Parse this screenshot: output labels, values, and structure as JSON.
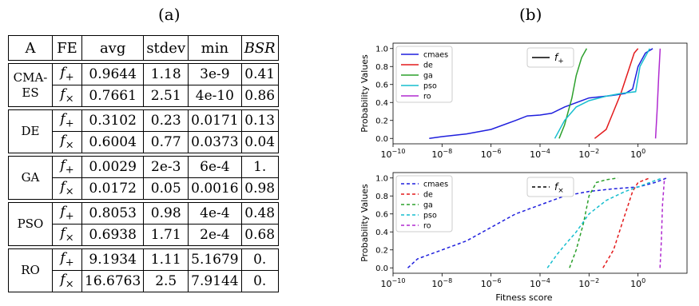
{
  "panel_a_label": "(a)",
  "panel_b_label": "(b)",
  "table": {
    "headers": [
      "A",
      "FE",
      "avg",
      "stdev",
      "min",
      "BSR"
    ],
    "groups": [
      {
        "algo_line1": "CMA-",
        "algo_line2": "ES",
        "rows": [
          {
            "fe": "f",
            "sub": "+",
            "avg": "0.9644",
            "stdev": "1.18",
            "min": "3e-9",
            "bsr": "0.41"
          },
          {
            "fe": "f",
            "sub": "×",
            "avg": "0.7661",
            "stdev": "2.51",
            "min": "4e-10",
            "bsr": "0.86"
          }
        ]
      },
      {
        "algo_line1": "DE",
        "algo_line2": "",
        "rows": [
          {
            "fe": "f",
            "sub": "+",
            "avg": "0.3102",
            "stdev": "0.23",
            "min": "0.0171",
            "bsr": "0.13"
          },
          {
            "fe": "f",
            "sub": "×",
            "avg": "0.6004",
            "stdev": "0.77",
            "min": "0.0373",
            "bsr": "0.04"
          }
        ]
      },
      {
        "algo_line1": "GA",
        "algo_line2": "",
        "rows": [
          {
            "fe": "f",
            "sub": "+",
            "avg": "0.0029",
            "stdev": "2e-3",
            "min": "6e-4",
            "bsr": "1."
          },
          {
            "fe": "f",
            "sub": "×",
            "avg": "0.0172",
            "stdev": "0.05",
            "min": "0.0016",
            "bsr": "0.98"
          }
        ]
      },
      {
        "algo_line1": "PSO",
        "algo_line2": "",
        "rows": [
          {
            "fe": "f",
            "sub": "+",
            "avg": "0.8053",
            "stdev": "0.98",
            "min": "4e-4",
            "bsr": "0.48"
          },
          {
            "fe": "f",
            "sub": "×",
            "avg": "0.6938",
            "stdev": "1.71",
            "min": "2e-4",
            "bsr": "0.68"
          }
        ]
      },
      {
        "algo_line1": "RO",
        "algo_line2": "",
        "rows": [
          {
            "fe": "f",
            "sub": "+",
            "avg": "9.1934",
            "stdev": "1.11",
            "min": "5.1679",
            "bsr": "0."
          },
          {
            "fe": "f",
            "sub": "×",
            "avg": "16.6763",
            "stdev": "2.5",
            "min": "7.9144",
            "bsr": "0."
          }
        ]
      }
    ]
  },
  "chart_data": [
    {
      "type": "line",
      "ylabel": "Probability Values",
      "xscale": "log",
      "xlim": [
        1e-10,
        100
      ],
      "ylim": [
        0,
        1
      ],
      "x_ticks": [
        "10^-10",
        "10^-8",
        "10^-6",
        "10^-4",
        "10^-2",
        "10^0"
      ],
      "y_ticks": [
        "0.0",
        "0.2",
        "0.4",
        "0.6",
        "0.8",
        "1.0"
      ],
      "line_style": "solid",
      "legend_left": [
        "cmaes",
        "de",
        "ga",
        "pso",
        "ro"
      ],
      "legend_right": {
        "f": "f",
        "sub": "+"
      },
      "series": [
        {
          "name": "cmaes",
          "color": "#1f1fdd",
          "points": [
            [
              3e-09,
              0.0
            ],
            [
              1e-08,
              0.02
            ],
            [
              1e-07,
              0.05
            ],
            [
              1e-06,
              0.1
            ],
            [
              1e-05,
              0.2
            ],
            [
              3e-05,
              0.25
            ],
            [
              0.0001,
              0.26
            ],
            [
              0.0003,
              0.28
            ],
            [
              0.001,
              0.35
            ],
            [
              0.01,
              0.45
            ],
            [
              0.1,
              0.48
            ],
            [
              0.3,
              0.5
            ],
            [
              0.6,
              0.55
            ],
            [
              1,
              0.8
            ],
            [
              2,
              0.95
            ],
            [
              4,
              1.0
            ]
          ]
        },
        {
          "name": "de",
          "color": "#e31a1c",
          "points": [
            [
              0.017,
              0.0
            ],
            [
              0.05,
              0.1
            ],
            [
              0.1,
              0.3
            ],
            [
              0.2,
              0.5
            ],
            [
              0.4,
              0.75
            ],
            [
              0.7,
              0.95
            ],
            [
              1,
              1.0
            ]
          ]
        },
        {
          "name": "ga",
          "color": "#2ca02c",
          "points": [
            [
              0.0006,
              0.0
            ],
            [
              0.001,
              0.15
            ],
            [
              0.002,
              0.45
            ],
            [
              0.003,
              0.7
            ],
            [
              0.005,
              0.9
            ],
            [
              0.008,
              1.0
            ]
          ]
        },
        {
          "name": "pso",
          "color": "#17becf",
          "points": [
            [
              0.0004,
              0.0
            ],
            [
              0.001,
              0.2
            ],
            [
              0.003,
              0.35
            ],
            [
              0.01,
              0.42
            ],
            [
              0.05,
              0.47
            ],
            [
              0.2,
              0.5
            ],
            [
              0.8,
              0.52
            ],
            [
              1.2,
              0.8
            ],
            [
              3,
              1.0
            ]
          ]
        },
        {
          "name": "ro",
          "color": "#b02ad0",
          "points": [
            [
              5.2,
              0.0
            ],
            [
              6,
              0.3
            ],
            [
              7,
              0.7
            ],
            [
              8,
              1.0
            ]
          ]
        }
      ]
    },
    {
      "type": "line",
      "xlabel": "Fitness score",
      "ylabel": "Probability Values",
      "xscale": "log",
      "xlim": [
        1e-10,
        100
      ],
      "ylim": [
        0,
        1
      ],
      "x_ticks": [
        "10^-10",
        "10^-8",
        "10^-6",
        "10^-4",
        "10^-2",
        "10^0"
      ],
      "y_ticks": [
        "0.0",
        "0.2",
        "0.4",
        "0.6",
        "0.8",
        "1.0"
      ],
      "line_style": "dashed",
      "legend_left": [
        "cmaes",
        "de",
        "ga",
        "pso",
        "ro"
      ],
      "legend_right": {
        "f": "f",
        "sub": "×"
      },
      "series": [
        {
          "name": "cmaes",
          "color": "#1f1fdd",
          "points": [
            [
              4e-10,
              0.0
            ],
            [
              1e-09,
              0.1
            ],
            [
              1e-08,
              0.2
            ],
            [
              1e-07,
              0.3
            ],
            [
              1e-06,
              0.45
            ],
            [
              1e-05,
              0.6
            ],
            [
              0.0001,
              0.7
            ],
            [
              0.001,
              0.8
            ],
            [
              0.01,
              0.85
            ],
            [
              0.1,
              0.88
            ],
            [
              1,
              0.9
            ],
            [
              5,
              0.95
            ],
            [
              15,
              1.0
            ]
          ]
        },
        {
          "name": "de",
          "color": "#e31a1c",
          "points": [
            [
              0.037,
              0.0
            ],
            [
              0.1,
              0.2
            ],
            [
              0.3,
              0.6
            ],
            [
              0.6,
              0.85
            ],
            [
              1,
              0.95
            ],
            [
              3,
              1.0
            ]
          ]
        },
        {
          "name": "ga",
          "color": "#2ca02c",
          "points": [
            [
              0.0016,
              0.0
            ],
            [
              0.003,
              0.2
            ],
            [
              0.006,
              0.5
            ],
            [
              0.01,
              0.8
            ],
            [
              0.02,
              0.95
            ],
            [
              0.05,
              0.98
            ],
            [
              0.15,
              1.0
            ]
          ]
        },
        {
          "name": "pso",
          "color": "#17becf",
          "points": [
            [
              0.0002,
              0.0
            ],
            [
              0.0005,
              0.15
            ],
            [
              0.001,
              0.25
            ],
            [
              0.003,
              0.4
            ],
            [
              0.01,
              0.6
            ],
            [
              0.05,
              0.75
            ],
            [
              0.3,
              0.85
            ],
            [
              1,
              0.9
            ],
            [
              3,
              0.95
            ],
            [
              10,
              1.0
            ]
          ]
        },
        {
          "name": "ro",
          "color": "#b02ad0",
          "points": [
            [
              7.9,
              0.0
            ],
            [
              9,
              0.3
            ],
            [
              10,
              0.7
            ],
            [
              12,
              1.0
            ]
          ]
        }
      ]
    }
  ]
}
